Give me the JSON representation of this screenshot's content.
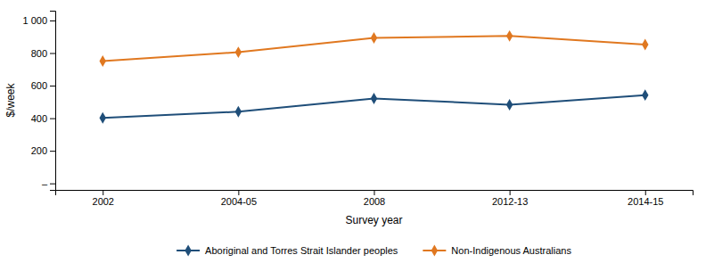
{
  "chart_data": {
    "type": "line",
    "xlabel": "Survey year",
    "ylabel": "$/week",
    "categories": [
      "2002",
      "2004-05",
      "2008",
      "2012-13",
      "2014-15"
    ],
    "series": [
      {
        "name": "Aboriginal and Torres Strait Islander peoples",
        "color": "#1F4E79",
        "marker": "diamond",
        "values": [
          402,
          440,
          521,
          483,
          542
        ]
      },
      {
        "name": "Non-Indigenous Australians",
        "color": "#E07820",
        "marker": "diamond",
        "values": [
          751,
          805,
          893,
          905,
          852
        ]
      }
    ],
    "ylim": [
      -40,
      1060
    ],
    "yticks": [
      {
        "value": 0,
        "label": "–"
      },
      200,
      400,
      600,
      800,
      {
        "value": 1000,
        "label": "1 000"
      }
    ],
    "grid": false,
    "legend": "bottom"
  }
}
